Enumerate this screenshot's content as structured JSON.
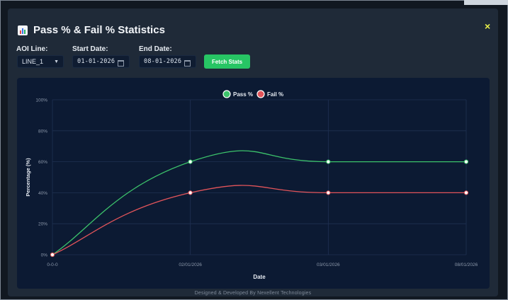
{
  "modal": {
    "title": "Pass % & Fail % Statistics",
    "title_icon": "bar-chart-icon",
    "close_label": "×"
  },
  "filters": {
    "aoi_line_label": "AOI Line:",
    "aoi_line_value": "LINE_1",
    "start_date_label": "Start Date:",
    "start_date_value": "01-01-2026",
    "end_date_label": "End Date:",
    "end_date_value": "08-01-2026",
    "fetch_button": "Fetch Stats"
  },
  "footer": "Designed & Developed By Nexellent Technologies",
  "colors": {
    "pass": "#3cc36b",
    "fail": "#e2545a",
    "accent": "#27c564"
  },
  "chart_data": {
    "type": "line",
    "categories": [
      "0-0-0",
      "02/01/2026",
      "03/01/2026",
      "08/01/2026"
    ],
    "series": [
      {
        "name": "Pass %",
        "values": [
          0,
          60,
          60,
          60
        ]
      },
      {
        "name": "Fail %",
        "values": [
          0,
          40,
          40,
          40
        ]
      }
    ],
    "xlabel": "Date",
    "ylabel": "Percentage (%)",
    "ylim": [
      0,
      100
    ],
    "yticks": [
      "0%",
      "20%",
      "40%",
      "60%",
      "80%",
      "100%"
    ],
    "grid": true,
    "legend": "top-center"
  }
}
